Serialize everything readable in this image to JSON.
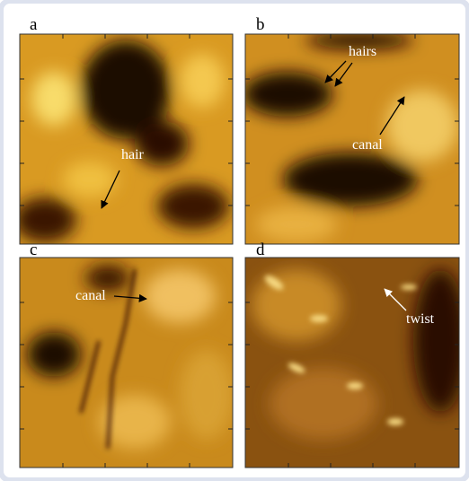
{
  "panels": [
    {
      "label": "a",
      "annotations": [
        "hair"
      ]
    },
    {
      "label": "b",
      "annotations": [
        "hairs",
        "canal"
      ]
    },
    {
      "label": "c",
      "annotations": [
        "canal"
      ]
    },
    {
      "label": "d",
      "annotations": [
        "twist"
      ]
    }
  ]
}
